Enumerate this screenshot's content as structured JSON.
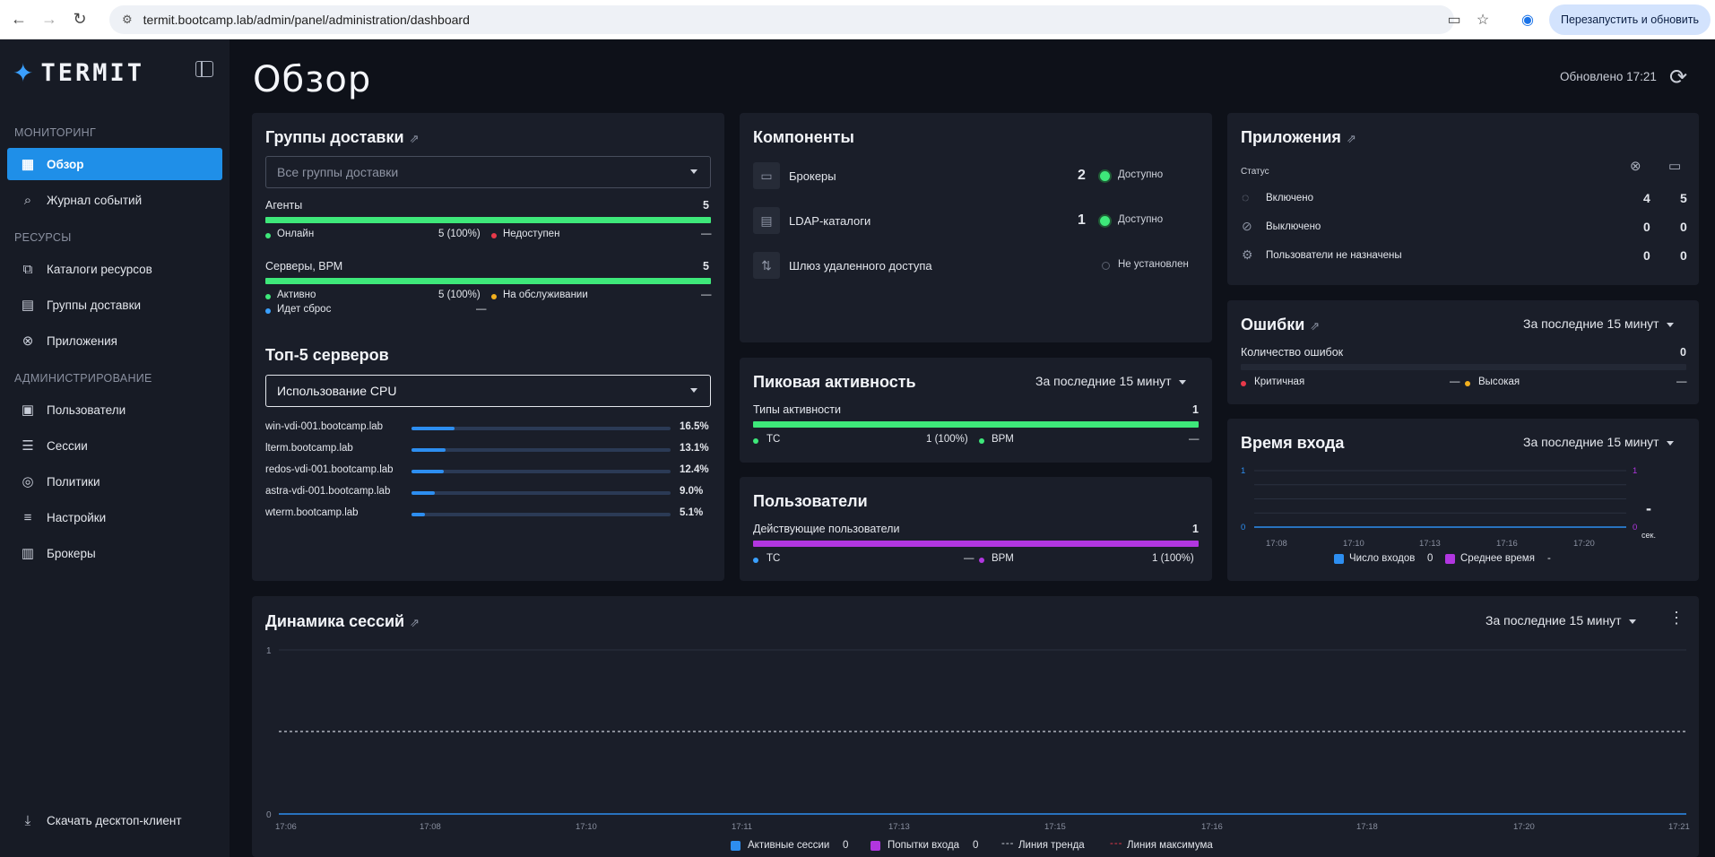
{
  "browser": {
    "url": "termit.bootcamp.lab/admin/panel/administration/dashboard",
    "relaunch_label": "Перезапустить и обновить"
  },
  "sidebar": {
    "logo": "TERMIT",
    "sections": {
      "monitoring": "МОНИТОРИНГ",
      "resources": "РЕСУРСЫ",
      "administration": "АДМИНИСТРИРОВАНИЕ"
    },
    "items": [
      {
        "label": "Обзор",
        "icon": "dashboard-icon"
      },
      {
        "label": "Журнал событий",
        "icon": "event-log-icon"
      },
      {
        "label": "Каталоги ресурсов",
        "icon": "resource-catalog-icon"
      },
      {
        "label": "Группы доставки",
        "icon": "delivery-groups-icon"
      },
      {
        "label": "Приложения",
        "icon": "applications-icon"
      },
      {
        "label": "Пользователи",
        "icon": "users-icon"
      },
      {
        "label": "Сессии",
        "icon": "sessions-icon"
      },
      {
        "label": "Политики",
        "icon": "policies-icon"
      },
      {
        "label": "Настройки",
        "icon": "settings-icon"
      },
      {
        "label": "Брокеры",
        "icon": "brokers-icon"
      }
    ],
    "download": "Скачать десктоп-клиент"
  },
  "header": {
    "title": "Обзор",
    "updated": "Обновлено 17:21"
  },
  "delivery_groups": {
    "title": "Группы доставки",
    "select": "Все группы доставки",
    "agents_label": "Агенты",
    "agents_count": "5",
    "online_label": "Онлайн",
    "online_value": "5 (100%)",
    "unavailable_label": "Недоступен",
    "unavailable_value": "—",
    "servers_label": "Серверы, ВРМ",
    "servers_count": "5",
    "active_label": "Активно",
    "active_value": "5 (100%)",
    "maintenance_label": "На обслуживании",
    "maintenance_value": "—",
    "reset_label": "Идет сброс",
    "reset_value": "—",
    "top_title": "Топ-5 серверов",
    "top_select": "Использование CPU",
    "servers": [
      {
        "name": "win-vdi-001.bootcamp.lab",
        "value": "16.5%",
        "pct": 16.5
      },
      {
        "name": "lterm.bootcamp.lab",
        "value": "13.1%",
        "pct": 13.1
      },
      {
        "name": "redos-vdi-001.bootcamp.lab",
        "value": "12.4%",
        "pct": 12.4
      },
      {
        "name": "astra-vdi-001.bootcamp.lab",
        "value": "9.0%",
        "pct": 9.0
      },
      {
        "name": "wterm.bootcamp.lab",
        "value": "5.1%",
        "pct": 5.1
      }
    ]
  },
  "components": {
    "title": "Компоненты",
    "items": [
      {
        "label": "Брокеры",
        "count": "2",
        "status": "Доступно",
        "color": "#3ee87a"
      },
      {
        "label": "LDAP-каталоги",
        "count": "1",
        "status": "Доступно",
        "color": "#3ee87a"
      },
      {
        "label": "Шлюз удаленного доступа",
        "count": "",
        "status": "Не установлен",
        "color": "#3a3f4b"
      }
    ]
  },
  "peak": {
    "title": "Пиковая активность",
    "period": "За последние 15 минут",
    "types_label": "Типы активности",
    "types_count": "1",
    "tc_label": "ТС",
    "tc_value": "1 (100%)",
    "vrm_label": "ВРМ",
    "vrm_value": "—"
  },
  "users": {
    "title": "Пользователи",
    "active_label": "Действующие пользователи",
    "active_count": "1",
    "tc_label": "ТС",
    "tc_value": "—",
    "vrm_label": "ВРМ",
    "vrm_value": "1 (100%)"
  },
  "apps": {
    "title": "Приложения",
    "status_label": "Статус",
    "rows": [
      {
        "label": "Включено",
        "a": "4",
        "b": "5"
      },
      {
        "label": "Выключено",
        "a": "0",
        "b": "0"
      },
      {
        "label": "Пользователи не назначены",
        "a": "0",
        "b": "0"
      }
    ]
  },
  "errors": {
    "title": "Ошибки",
    "period": "За последние 15 минут",
    "count_label": "Количество ошибок",
    "count_value": "0",
    "critical_label": "Критичная",
    "critical_value": "—",
    "high_label": "Высокая",
    "high_value": "—"
  },
  "login_time": {
    "title": "Время входа",
    "period": "За последние 15 минут",
    "y_left": [
      "1",
      "0"
    ],
    "y_right": [
      "1",
      "0"
    ],
    "x_ticks": [
      "17:08",
      "17:10",
      "17:13",
      "17:16",
      "17:20"
    ],
    "side_value": "-",
    "side_unit": "сек.",
    "legend_count_label": "Число входов",
    "legend_count_value": "0",
    "legend_avg_label": "Среднее время",
    "legend_avg_value": "-"
  },
  "sessions": {
    "title": "Динамика сессий",
    "period": "За последние 15 минут",
    "y_ticks": [
      "1",
      "0"
    ],
    "x_ticks": [
      "17:06",
      "17:08",
      "17:10",
      "17:11",
      "17:13",
      "17:15",
      "17:16",
      "17:18",
      "17:20",
      "17:21"
    ],
    "legend_active_label": "Активные сессии",
    "legend_active_value": "0",
    "legend_attempts_label": "Попытки входа",
    "legend_attempts_value": "0",
    "legend_trend_label": "Линия тренда",
    "legend_max_label": "Линия максимума"
  },
  "colors": {
    "accent": "#1f8fe8",
    "green": "#3ee87a",
    "purple": "#b136e0",
    "red": "#e8394a",
    "yellow": "#f2b01e",
    "blue_dot": "#3aa0ff"
  }
}
